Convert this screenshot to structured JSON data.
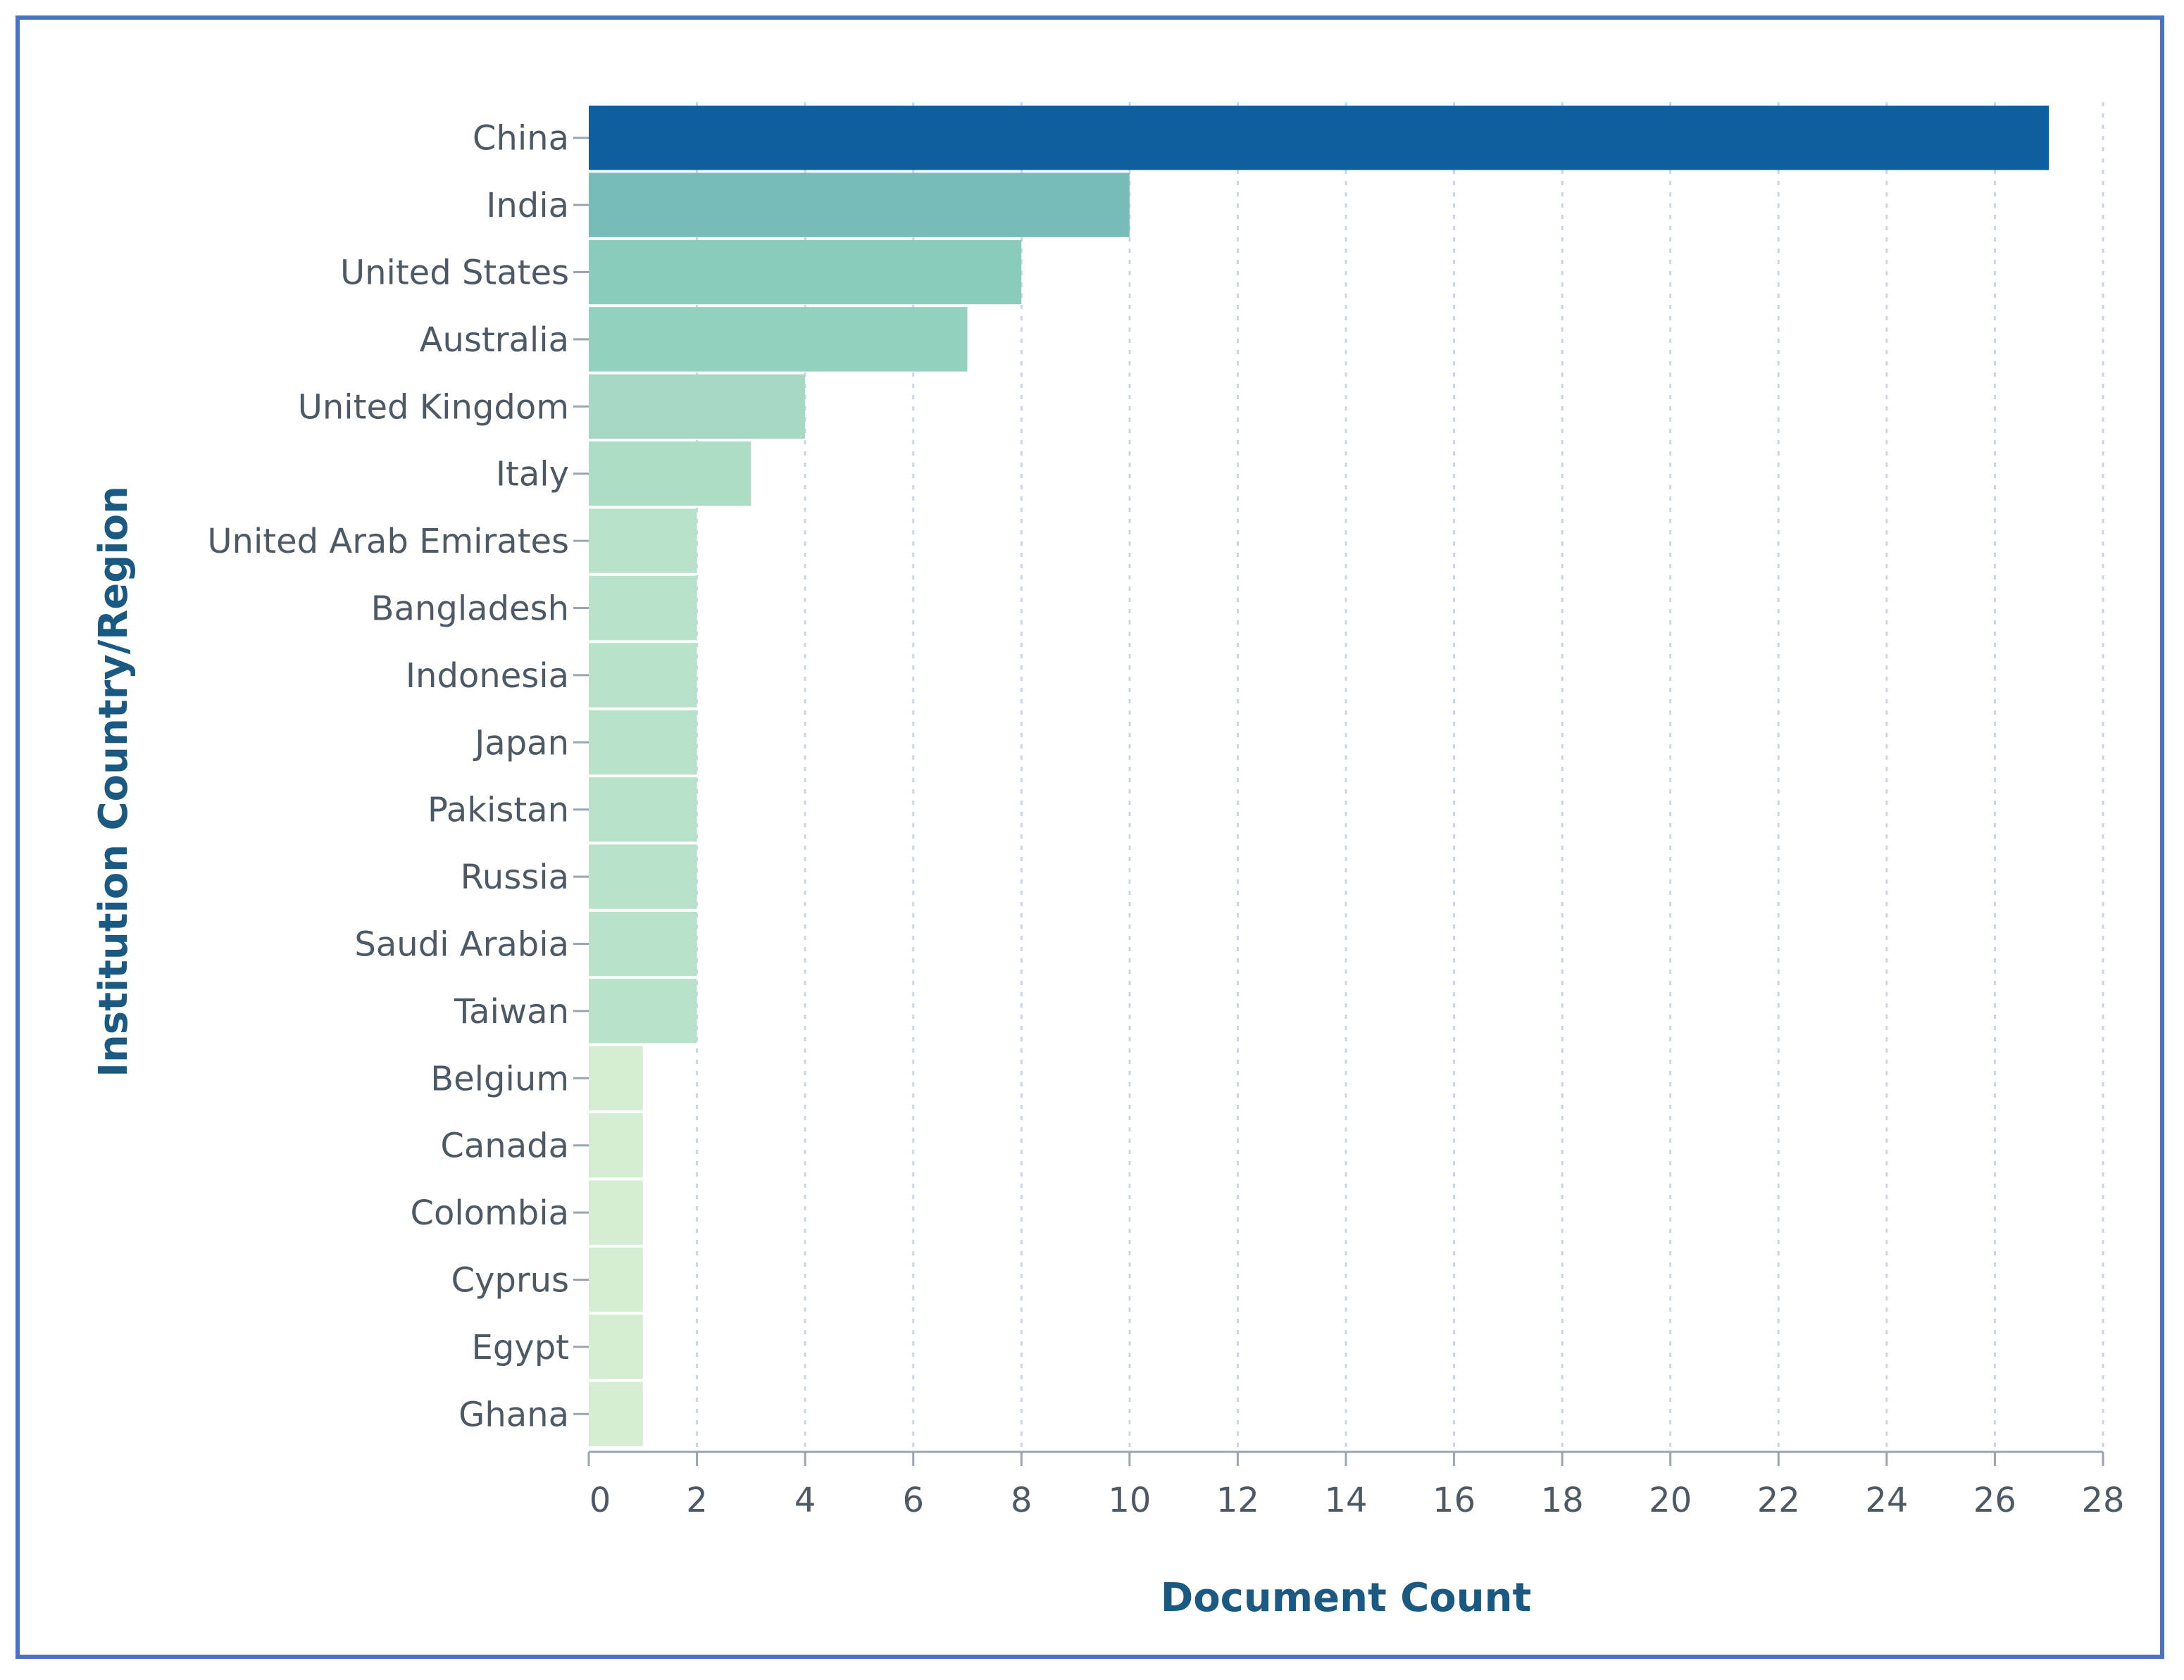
{
  "chart_data": {
    "type": "bar",
    "orientation": "horizontal",
    "title": "",
    "xlabel": "Document Count",
    "ylabel": "Institution Country/Region",
    "xlim": [
      0,
      28
    ],
    "x_ticks": [
      "0",
      "2",
      "4",
      "6",
      "8",
      "10",
      "12",
      "14",
      "16",
      "18",
      "20",
      "22",
      "24",
      "26",
      "28"
    ],
    "grid": "vertical dashed",
    "categories": [
      "China",
      "India",
      "United States",
      "Australia",
      "United Kingdom",
      "Italy",
      "United Arab Emirates",
      "Bangladesh",
      "Indonesia",
      "Japan",
      "Pakistan",
      "Russia",
      "Saudi Arabia",
      "Taiwan",
      "Belgium",
      "Canada",
      "Colombia",
      "Cyprus",
      "Egypt",
      "Ghana"
    ],
    "values": [
      27,
      10,
      8,
      7,
      4,
      3,
      2,
      2,
      2,
      2,
      2,
      2,
      2,
      2,
      1,
      1,
      1,
      1,
      1,
      1
    ],
    "color_scale": {
      "low": "#d4edd3",
      "mid": "#8fd0bc",
      "high": "#0d5fa0"
    }
  }
}
